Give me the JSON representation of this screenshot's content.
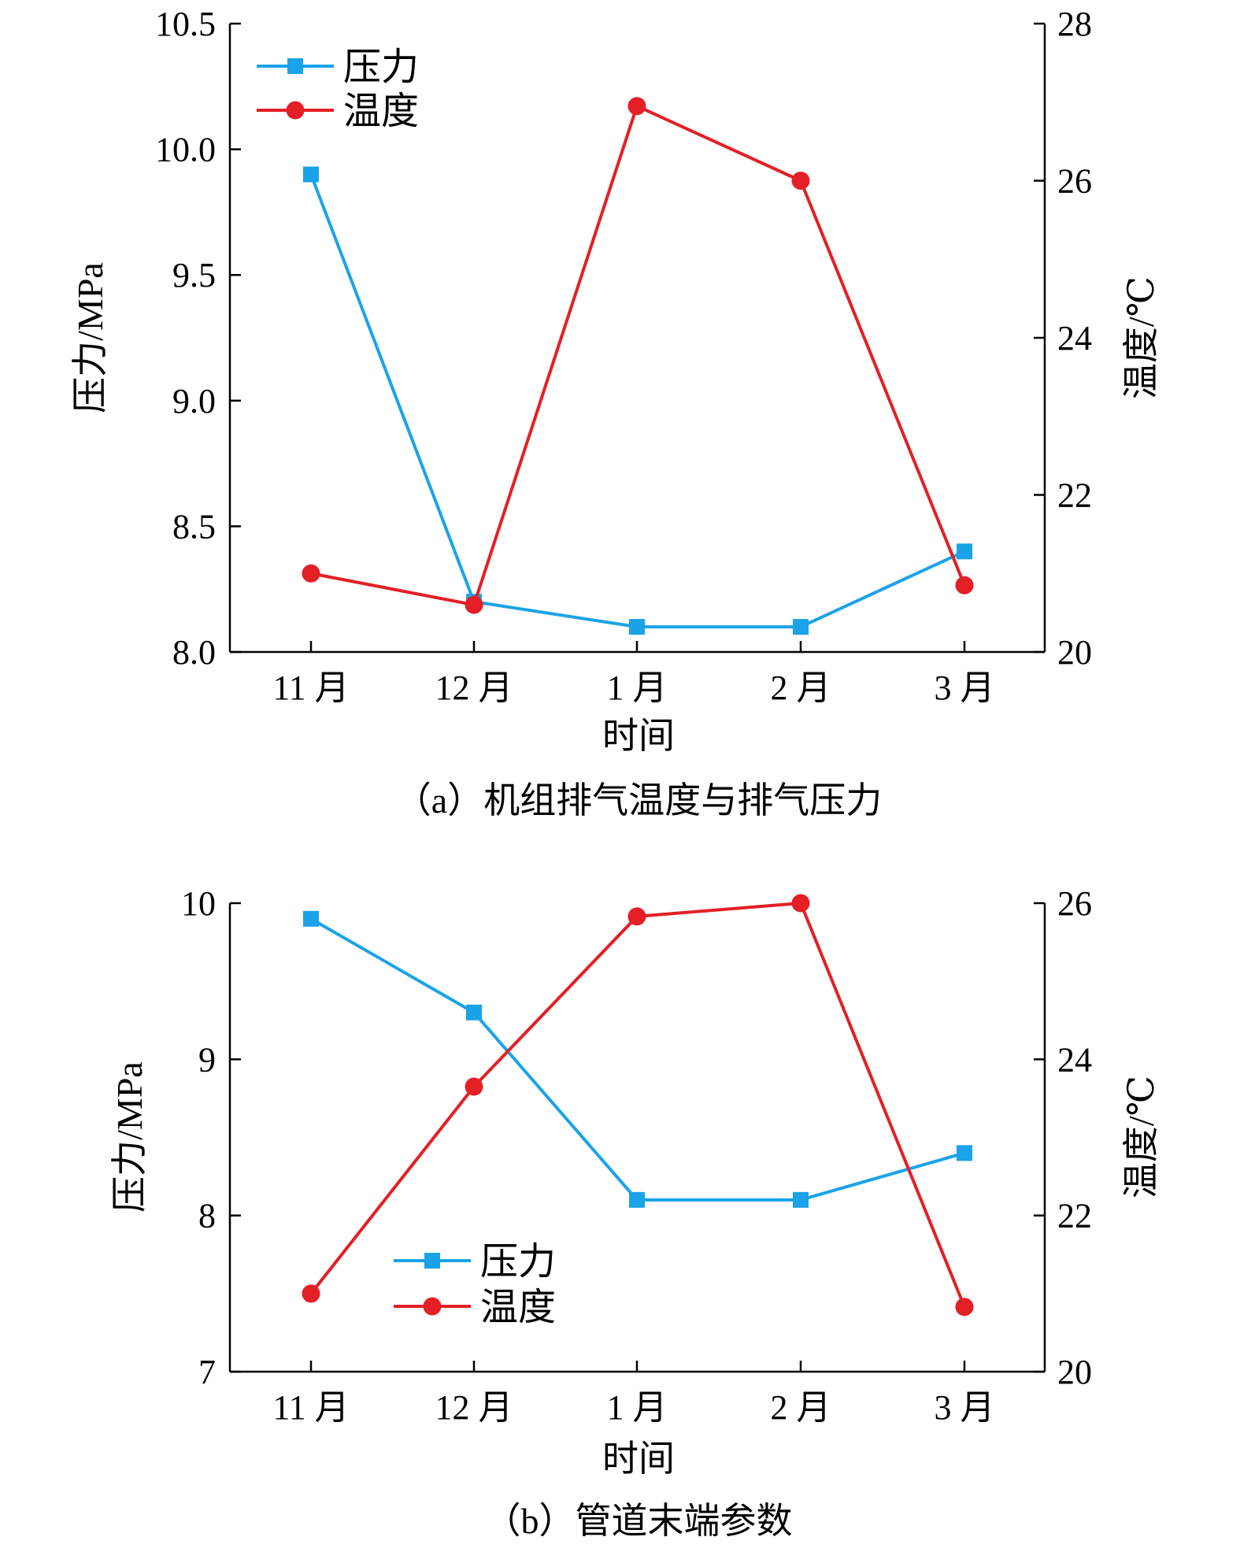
{
  "chart_data": [
    {
      "type": "line",
      "caption": "（a）机组排气温度与排气压力",
      "xlabel": "时间",
      "ylabel": "压力/MPa",
      "y2label": "温度/℃",
      "categories": [
        "11 月",
        "12 月",
        "1 月",
        "2 月",
        "3 月"
      ],
      "ylim": [
        8.0,
        10.5
      ],
      "yticks": [
        "8.0",
        "8.5",
        "9.0",
        "9.5",
        "10.0",
        "10.5"
      ],
      "y2lim": [
        20,
        28
      ],
      "y2ticks": [
        "20",
        "22",
        "24",
        "26",
        "28"
      ],
      "legend_position": "top-left",
      "series": [
        {
          "name": "压力",
          "axis": "left",
          "marker": "square",
          "color": "#1aa3e8",
          "values": [
            9.9,
            8.2,
            8.1,
            8.1,
            8.4
          ]
        },
        {
          "name": "温度",
          "axis": "right",
          "marker": "circle",
          "color": "#e41f26",
          "values": [
            21.0,
            20.6,
            26.95,
            26.0,
            20.85
          ]
        }
      ]
    },
    {
      "type": "line",
      "caption": "（b）管道末端参数",
      "xlabel": "时间",
      "ylabel": "压力/MPa",
      "y2label": "温度/℃",
      "categories": [
        "11 月",
        "12 月",
        "1 月",
        "2 月",
        "3 月"
      ],
      "ylim": [
        7,
        10
      ],
      "yticks": [
        "7",
        "8",
        "9",
        "10"
      ],
      "y2lim": [
        20,
        26
      ],
      "y2ticks": [
        "20",
        "22",
        "24",
        "26"
      ],
      "legend_position": "lower-left",
      "series": [
        {
          "name": "压力",
          "axis": "left",
          "marker": "square",
          "color": "#1aa3e8",
          "values": [
            9.9,
            9.3,
            8.1,
            8.1,
            8.4
          ]
        },
        {
          "name": "温度",
          "axis": "right",
          "marker": "circle",
          "color": "#e41f26",
          "values": [
            21.0,
            23.65,
            25.83,
            26.0,
            20.83
          ]
        }
      ]
    }
  ]
}
